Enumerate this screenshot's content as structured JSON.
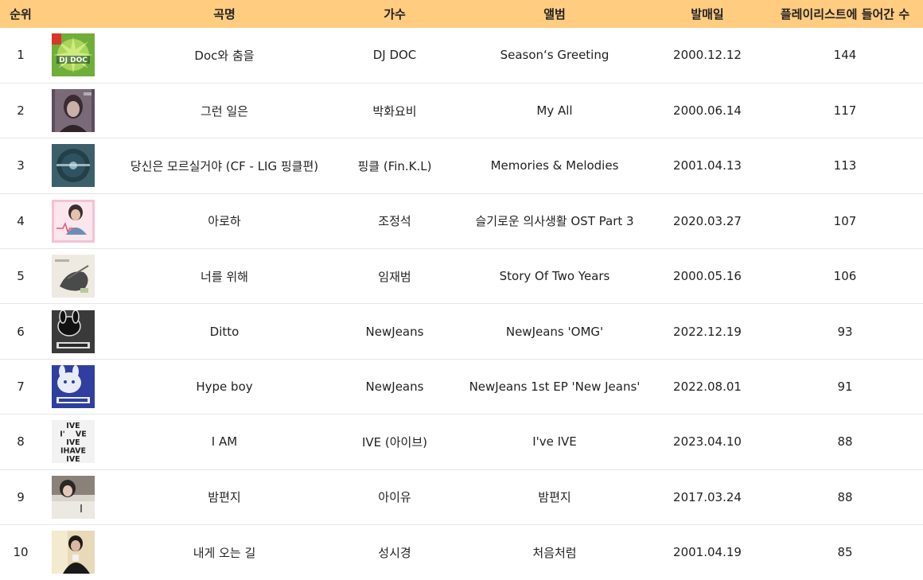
{
  "header": {
    "color": "#FFCC80",
    "columns": [
      "순위",
      "",
      "곡명",
      "가수",
      "앨범",
      "발매일",
      "플레이리스트에 들어간 수"
    ]
  },
  "rows": [
    {
      "rank": "1",
      "art": "djdoc-album-art",
      "song": "Doc와 춤을",
      "artist": "DJ DOC",
      "album": "Season‘s Greeting",
      "date": "2000.12.12",
      "count": "144",
      "art_text": "DJ DOC"
    },
    {
      "rank": "2",
      "art": "portrait-album-art",
      "song": "그런 일은",
      "artist": "박화요비",
      "album": "My All",
      "date": "2000.06.14",
      "count": "117"
    },
    {
      "rank": "3",
      "art": "vinyl-album-art",
      "song": "당신은 모르실거야 (CF - LIG 핑클편)",
      "artist": "핑클 (Fin.K.L)",
      "album": "Memories & Melodies",
      "date": "2001.04.13",
      "count": "113"
    },
    {
      "rank": "4",
      "art": "ost-album-art",
      "song": "아로하",
      "artist": "조정석",
      "album": "슬기로운 의사생활 OST Part 3",
      "date": "2020.03.27",
      "count": "107"
    },
    {
      "rank": "5",
      "art": "sketch-album-art",
      "song": "너를 위해",
      "artist": "임재범",
      "album": "Story Of Two Years",
      "date": "2000.05.16",
      "count": "106"
    },
    {
      "rank": "6",
      "art": "bunny-dark-album-art",
      "song": "Ditto",
      "artist": "NewJeans",
      "album": "NewJeans 'OMG'",
      "date": "2022.12.19",
      "count": "93"
    },
    {
      "rank": "7",
      "art": "bunny-blue-album-art",
      "song": "Hype boy",
      "artist": "NewJeans",
      "album": "NewJeans 1st EP 'New Jeans'",
      "date": "2022.08.01",
      "count": "91"
    },
    {
      "rank": "8",
      "art": "ive-album-art",
      "song": "I AM",
      "artist": "IVE (아이브)",
      "album": "I've IVE",
      "date": "2023.04.10",
      "count": "88",
      "art_lines": [
        "IVE",
        "I'    VE",
        "IVE",
        "IHAVE",
        "IVE"
      ]
    },
    {
      "rank": "9",
      "art": "girl-album-art",
      "song": "밤편지",
      "artist": "아이유",
      "album": "밤편지",
      "date": "2017.03.24",
      "count": "88"
    },
    {
      "rank": "10",
      "art": "man-album-art",
      "song": "내게 오는 길",
      "artist": "성시경",
      "album": "처음처럼",
      "date": "2001.04.19",
      "count": "85"
    }
  ]
}
